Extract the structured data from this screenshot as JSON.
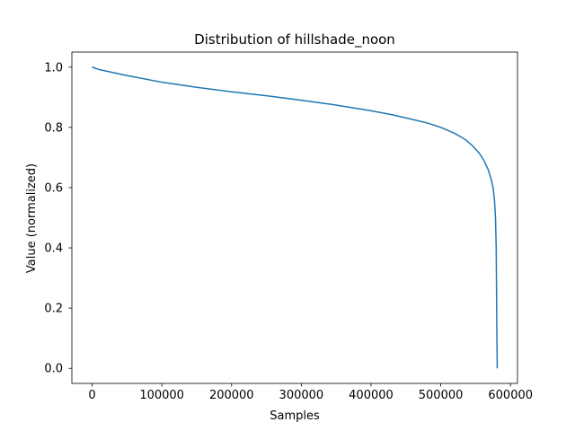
{
  "chart_data": {
    "type": "line",
    "title": "Distribution of hillshade_noon",
    "xlabel": "Samples",
    "ylabel": "Value (normalized)",
    "xlim": [
      -29050,
      610050
    ],
    "ylim": [
      -0.05,
      1.05
    ],
    "xticks": [
      0,
      100000,
      200000,
      300000,
      400000,
      500000,
      600000
    ],
    "xtick_labels": [
      "0",
      "100000",
      "200000",
      "300000",
      "400000",
      "500000",
      "600000"
    ],
    "yticks": [
      0.0,
      0.2,
      0.4,
      0.6,
      0.8,
      1.0
    ],
    "ytick_labels": [
      "0.0",
      "0.2",
      "0.4",
      "0.6",
      "0.8",
      "1.0"
    ],
    "grid": false,
    "series": [
      {
        "color": "#1f77b4",
        "x": [
          0,
          10000,
          50000,
          100000,
          150000,
          200000,
          250000,
          300000,
          350000,
          400000,
          430000,
          460000,
          480000,
          500000,
          520000,
          535000,
          545000,
          555000,
          562000,
          568000,
          572000,
          575000,
          577000,
          578500,
          579500,
          580000,
          580500,
          581000
        ],
        "y": [
          1.0,
          0.992,
          0.972,
          0.95,
          0.933,
          0.918,
          0.905,
          0.89,
          0.874,
          0.855,
          0.842,
          0.826,
          0.815,
          0.8,
          0.78,
          0.76,
          0.74,
          0.715,
          0.69,
          0.66,
          0.63,
          0.6,
          0.56,
          0.5,
          0.4,
          0.25,
          0.1,
          0.0
        ]
      }
    ]
  }
}
